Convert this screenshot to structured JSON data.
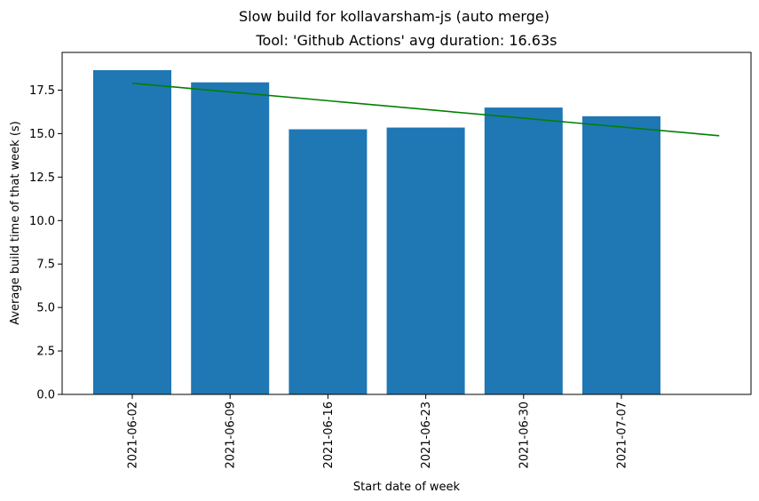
{
  "figure": {
    "suptitle": "Slow build for kollavarsham-js (auto merge)"
  },
  "chart_data": {
    "type": "bar",
    "title": "Tool: 'Github Actions' avg duration: 16.63s",
    "xlabel": "Start date of week",
    "ylabel": "Average build time of that week (s)",
    "categories": [
      "2021-06-02",
      "2021-06-09",
      "2021-06-16",
      "2021-06-23",
      "2021-06-30",
      "2021-07-07"
    ],
    "values": [
      18.65,
      17.95,
      15.25,
      15.35,
      16.5,
      16.0
    ],
    "bar_color": "#1f77b4",
    "ylim": [
      0,
      18.65
    ],
    "yticks": [
      0.0,
      2.5,
      5.0,
      7.5,
      10.0,
      12.5,
      15.0,
      17.5
    ],
    "ytick_labels": [
      "0.0",
      "2.5",
      "5.0",
      "7.5",
      "10.0",
      "12.5",
      "15.0",
      "17.5"
    ],
    "trend_line": {
      "color": "#008000",
      "x_start_category": 0,
      "x_end_category": 6,
      "y_start": 17.9,
      "y_end": 14.88
    },
    "grid": false,
    "legend": "none"
  }
}
